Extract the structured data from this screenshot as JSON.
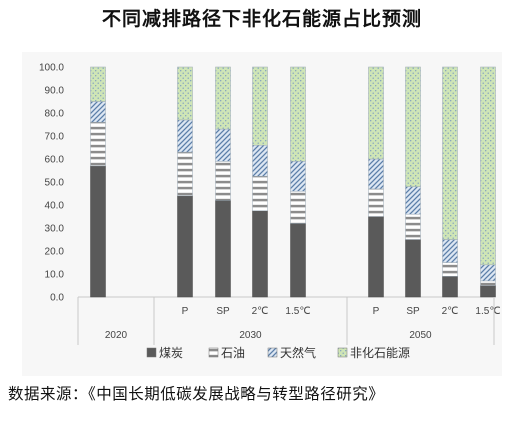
{
  "title": "不同减排路径下非化石能源占比预测",
  "source": "数据来源：《中国长期低碳发展战略与转型路径研究》",
  "colors": {
    "coal": "#5a5a5a",
    "oil": "#b4b4b4",
    "gas": "#7f9cbf",
    "nonfossil": "#c4dfa8"
  },
  "chart_data": {
    "type": "bar",
    "stacked": true,
    "ylim": [
      0,
      100
    ],
    "yticks": [
      "0.0",
      "10.0",
      "20.0",
      "30.0",
      "40.0",
      "50.0",
      "60.0",
      "70.0",
      "80.0",
      "90.0",
      "100.0"
    ],
    "grid": false,
    "legend_position": "bottom",
    "groups": [
      {
        "label": "2020",
        "bars": [
          {
            "label": "",
            "coal": 57,
            "oil": 19,
            "gas": 9,
            "nonfossil": 15
          }
        ]
      },
      {
        "label": "2030",
        "bars": [
          {
            "label": "P",
            "coal": 44,
            "oil": 19,
            "gas": 14,
            "nonfossil": 23
          },
          {
            "label": "SP",
            "coal": 42,
            "oil": 17,
            "gas": 14,
            "nonfossil": 27
          },
          {
            "label": "2℃",
            "coal": 37.5,
            "oil": 15,
            "gas": 13.5,
            "nonfossil": 34
          },
          {
            "label": "1.5℃",
            "coal": 32,
            "oil": 14,
            "gas": 13,
            "nonfossil": 41
          }
        ]
      },
      {
        "label": "2050",
        "bars": [
          {
            "label": "P",
            "coal": 35,
            "oil": 12,
            "gas": 13,
            "nonfossil": 40
          },
          {
            "label": "SP",
            "coal": 25,
            "oil": 11,
            "gas": 12,
            "nonfossil": 52
          },
          {
            "label": "2℃",
            "coal": 9,
            "oil": 6,
            "gas": 10,
            "nonfossil": 75
          },
          {
            "label": "1.5℃",
            "coal": 5,
            "oil": 2,
            "gas": 7,
            "nonfossil": 86
          }
        ]
      }
    ],
    "series": [
      {
        "key": "coal",
        "name": "煤炭"
      },
      {
        "key": "oil",
        "name": "石油"
      },
      {
        "key": "gas",
        "name": "天然气"
      },
      {
        "key": "nonfossil",
        "name": "非化石能源"
      }
    ]
  }
}
